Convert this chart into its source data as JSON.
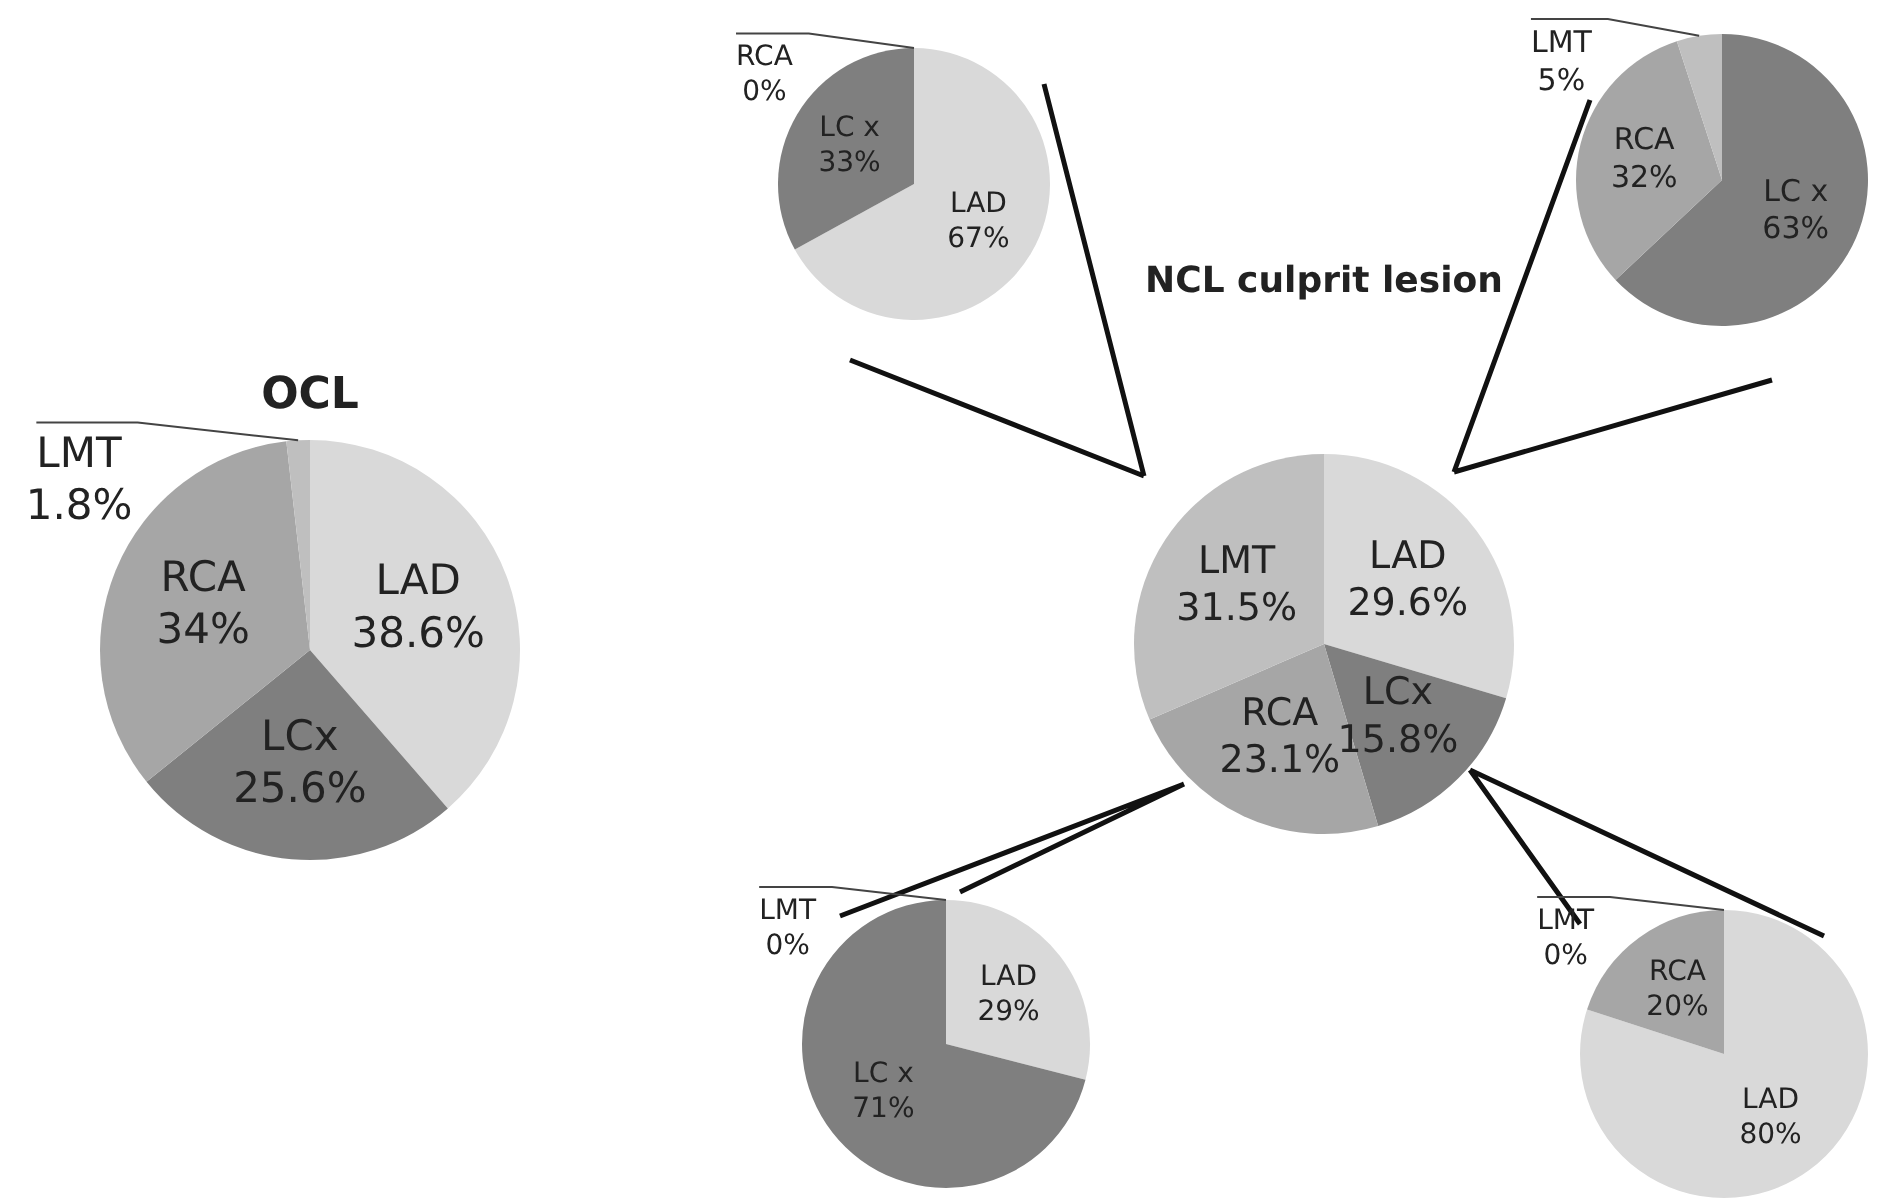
{
  "chart_data": [
    {
      "type": "pie",
      "title": "OCL",
      "categories": [
        "LAD",
        "LCx",
        "RCA",
        "LMT"
      ],
      "values": [
        38.6,
        25.6,
        34,
        1.8
      ],
      "colors": [
        "#d9d9d9",
        "#7f7f7f",
        "#a6a6a6",
        "#bfbfbf"
      ],
      "value_labels": [
        "38.6%",
        "25.6%",
        "34%",
        "1.8%"
      ]
    },
    {
      "type": "pie",
      "title": "NCL culprit lesion",
      "categories": [
        "LAD",
        "LCx",
        "RCA",
        "LMT"
      ],
      "values": [
        29.6,
        15.8,
        23.1,
        31.5
      ],
      "colors": [
        "#d9d9d9",
        "#7f7f7f",
        "#a6a6a6",
        "#bfbfbf"
      ],
      "value_labels": [
        "29.6%",
        "15.8%",
        "23.1%",
        "31.5%"
      ]
    },
    {
      "type": "pie",
      "categories": [
        "LAD",
        "LC x",
        "RCA"
      ],
      "values": [
        67,
        33,
        0
      ],
      "colors": [
        "#d9d9d9",
        "#7f7f7f",
        "#a6a6a6"
      ],
      "value_labels": [
        "67%",
        "33%",
        "0%"
      ]
    },
    {
      "type": "pie",
      "categories": [
        "LC x",
        "RCA",
        "LMT"
      ],
      "values": [
        63,
        32,
        5
      ],
      "colors": [
        "#7f7f7f",
        "#a6a6a6",
        "#bfbfbf"
      ],
      "value_labels": [
        "63%",
        "32%",
        "5%"
      ]
    },
    {
      "type": "pie",
      "categories": [
        "LAD",
        "LC x",
        "LMT"
      ],
      "values": [
        29,
        71,
        0
      ],
      "colors": [
        "#d9d9d9",
        "#7f7f7f",
        "#bfbfbf"
      ],
      "value_labels": [
        "29%",
        "71%",
        "0%"
      ]
    },
    {
      "type": "pie",
      "categories": [
        "LAD",
        "RCA",
        "LMT"
      ],
      "values": [
        80,
        20,
        0
      ],
      "colors": [
        "#d9d9d9",
        "#a6a6a6",
        "#bfbfbf"
      ],
      "value_labels": [
        "80%",
        "20%",
        "0%"
      ]
    }
  ]
}
